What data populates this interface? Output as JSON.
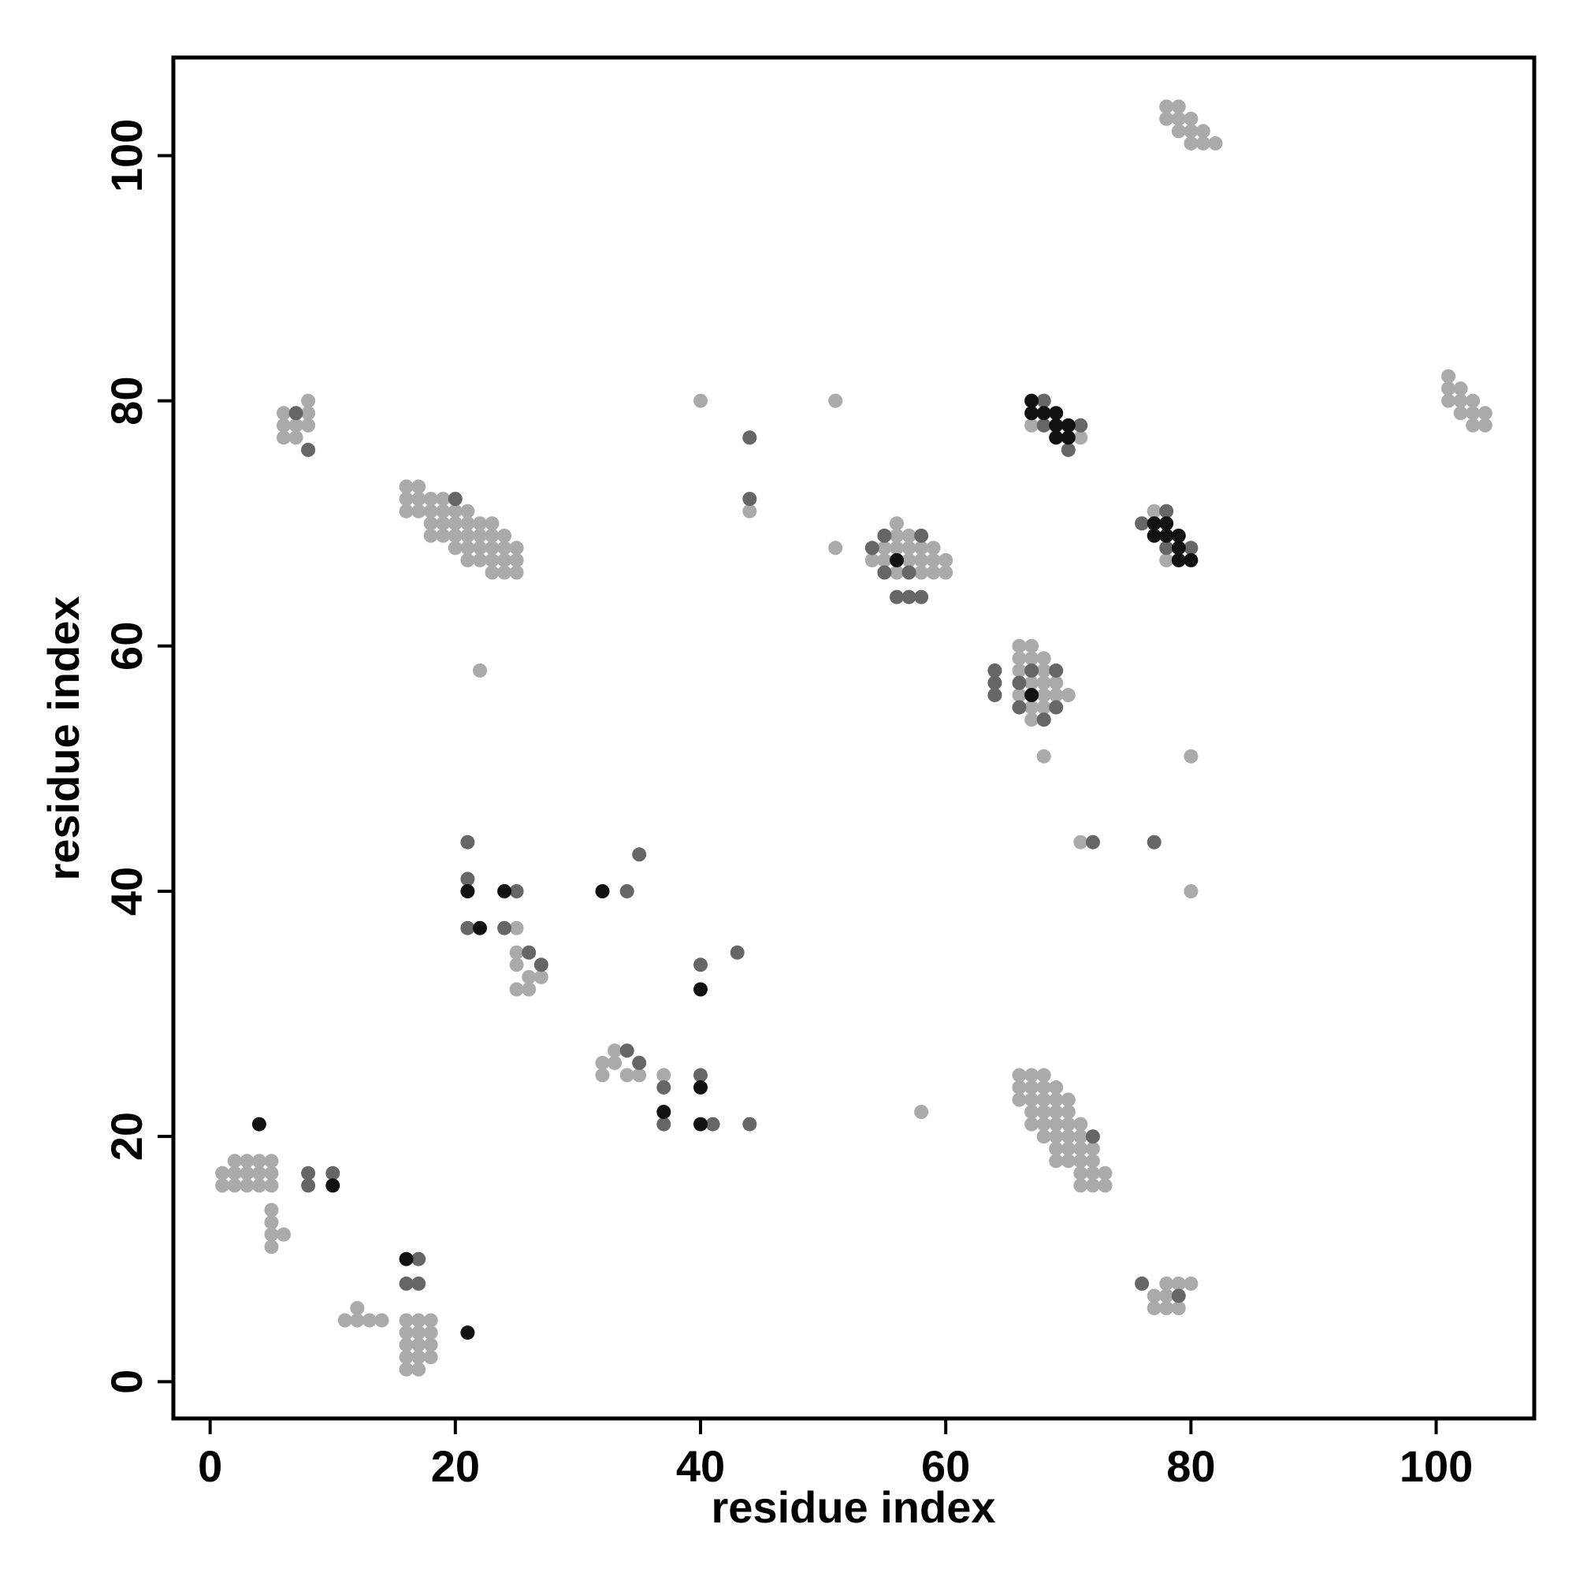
{
  "chart_data": {
    "type": "scatter",
    "title": "",
    "xlabel": "residue index",
    "ylabel": "residue index",
    "xlim": [
      -3,
      108
    ],
    "ylim": [
      -3,
      108
    ],
    "x_ticks": [
      0,
      20,
      40,
      60,
      80,
      100
    ],
    "y_ticks": [
      0,
      20,
      40,
      60,
      80,
      100
    ],
    "grid": false,
    "legend": "none",
    "colors": {
      "light": "#aaaaaa",
      "medium": "#666666",
      "dark": "#111111"
    },
    "series": [
      {
        "color_key": "light",
        "points": [
          [
            1,
            16
          ],
          [
            1,
            17
          ],
          [
            2,
            16
          ],
          [
            2,
            17
          ],
          [
            2,
            18
          ],
          [
            3,
            16
          ],
          [
            3,
            17
          ],
          [
            3,
            18
          ],
          [
            4,
            16
          ],
          [
            4,
            17
          ],
          [
            4,
            18
          ],
          [
            5,
            16
          ],
          [
            5,
            17
          ],
          [
            5,
            18
          ],
          [
            5,
            14
          ],
          [
            5,
            13
          ],
          [
            5,
            12
          ],
          [
            5,
            11
          ],
          [
            6,
            12
          ],
          [
            11,
            5
          ],
          [
            12,
            5
          ],
          [
            12,
            6
          ],
          [
            13,
            5
          ],
          [
            14,
            5
          ],
          [
            16,
            1
          ],
          [
            16,
            2
          ],
          [
            16,
            3
          ],
          [
            16,
            4
          ],
          [
            16,
            5
          ],
          [
            17,
            1
          ],
          [
            17,
            2
          ],
          [
            17,
            3
          ],
          [
            17,
            4
          ],
          [
            17,
            5
          ],
          [
            18,
            2
          ],
          [
            18,
            3
          ],
          [
            18,
            4
          ],
          [
            18,
            5
          ],
          [
            6,
            79
          ],
          [
            6,
            78
          ],
          [
            6,
            77
          ],
          [
            7,
            78
          ],
          [
            7,
            77
          ],
          [
            8,
            80
          ],
          [
            8,
            79
          ],
          [
            8,
            78
          ],
          [
            16,
            73
          ],
          [
            16,
            72
          ],
          [
            16,
            71
          ],
          [
            17,
            73
          ],
          [
            17,
            72
          ],
          [
            17,
            71
          ],
          [
            18,
            72
          ],
          [
            18,
            71
          ],
          [
            18,
            70
          ],
          [
            18,
            69
          ],
          [
            19,
            72
          ],
          [
            19,
            71
          ],
          [
            19,
            70
          ],
          [
            19,
            69
          ],
          [
            20,
            71
          ],
          [
            20,
            70
          ],
          [
            20,
            69
          ],
          [
            20,
            68
          ],
          [
            21,
            71
          ],
          [
            21,
            70
          ],
          [
            21,
            69
          ],
          [
            21,
            68
          ],
          [
            21,
            67
          ],
          [
            22,
            70
          ],
          [
            22,
            69
          ],
          [
            22,
            68
          ],
          [
            22,
            67
          ],
          [
            23,
            70
          ],
          [
            23,
            69
          ],
          [
            23,
            68
          ],
          [
            23,
            67
          ],
          [
            23,
            66
          ],
          [
            24,
            69
          ],
          [
            24,
            68
          ],
          [
            24,
            67
          ],
          [
            24,
            66
          ],
          [
            25,
            68
          ],
          [
            25,
            67
          ],
          [
            25,
            66
          ],
          [
            22,
            58
          ],
          [
            25,
            37
          ],
          [
            25,
            35
          ],
          [
            25,
            34
          ],
          [
            25,
            32
          ],
          [
            26,
            33
          ],
          [
            26,
            32
          ],
          [
            27,
            33
          ],
          [
            32,
            26
          ],
          [
            32,
            25
          ],
          [
            33,
            27
          ],
          [
            33,
            26
          ],
          [
            34,
            25
          ],
          [
            35,
            25
          ],
          [
            37,
            25
          ],
          [
            40,
            80
          ],
          [
            44,
            71
          ],
          [
            51,
            80
          ],
          [
            51,
            68
          ],
          [
            54,
            67
          ],
          [
            55,
            68
          ],
          [
            55,
            67
          ],
          [
            56,
            70
          ],
          [
            56,
            69
          ],
          [
            56,
            68
          ],
          [
            56,
            66
          ],
          [
            57,
            69
          ],
          [
            57,
            68
          ],
          [
            57,
            67
          ],
          [
            58,
            68
          ],
          [
            58,
            67
          ],
          [
            58,
            66
          ],
          [
            59,
            68
          ],
          [
            59,
            67
          ],
          [
            59,
            66
          ],
          [
            60,
            67
          ],
          [
            60,
            66
          ],
          [
            58,
            22
          ],
          [
            66,
            60
          ],
          [
            66,
            59
          ],
          [
            66,
            58
          ],
          [
            66,
            56
          ],
          [
            67,
            60
          ],
          [
            67,
            59
          ],
          [
            67,
            57
          ],
          [
            67,
            55
          ],
          [
            67,
            54
          ],
          [
            68,
            59
          ],
          [
            68,
            58
          ],
          [
            68,
            57
          ],
          [
            68,
            56
          ],
          [
            68,
            55
          ],
          [
            69,
            57
          ],
          [
            69,
            56
          ],
          [
            70,
            56
          ],
          [
            68,
            51
          ],
          [
            80,
            51
          ],
          [
            71,
            44
          ],
          [
            80,
            40
          ],
          [
            67,
            78
          ],
          [
            71,
            77
          ],
          [
            77,
            71
          ],
          [
            78,
            67
          ],
          [
            66,
            25
          ],
          [
            66,
            24
          ],
          [
            66,
            23
          ],
          [
            67,
            25
          ],
          [
            67,
            24
          ],
          [
            67,
            23
          ],
          [
            67,
            22
          ],
          [
            67,
            21
          ],
          [
            68,
            25
          ],
          [
            68,
            24
          ],
          [
            68,
            23
          ],
          [
            68,
            22
          ],
          [
            68,
            21
          ],
          [
            68,
            20
          ],
          [
            69,
            24
          ],
          [
            69,
            23
          ],
          [
            69,
            22
          ],
          [
            69,
            21
          ],
          [
            69,
            20
          ],
          [
            69,
            19
          ],
          [
            69,
            18
          ],
          [
            70,
            23
          ],
          [
            70,
            22
          ],
          [
            70,
            21
          ],
          [
            70,
            20
          ],
          [
            70,
            19
          ],
          [
            70,
            18
          ],
          [
            71,
            21
          ],
          [
            71,
            20
          ],
          [
            71,
            19
          ],
          [
            71,
            18
          ],
          [
            71,
            17
          ],
          [
            71,
            16
          ],
          [
            72,
            19
          ],
          [
            72,
            18
          ],
          [
            72,
            17
          ],
          [
            72,
            16
          ],
          [
            73,
            17
          ],
          [
            73,
            16
          ],
          [
            77,
            7
          ],
          [
            77,
            6
          ],
          [
            78,
            8
          ],
          [
            78,
            7
          ],
          [
            78,
            6
          ],
          [
            79,
            8
          ],
          [
            79,
            6
          ],
          [
            80,
            8
          ],
          [
            78,
            104
          ],
          [
            78,
            103
          ],
          [
            79,
            104
          ],
          [
            79,
            103
          ],
          [
            79,
            102
          ],
          [
            80,
            103
          ],
          [
            80,
            102
          ],
          [
            80,
            101
          ],
          [
            81,
            102
          ],
          [
            81,
            101
          ],
          [
            82,
            101
          ],
          [
            101,
            82
          ],
          [
            101,
            81
          ],
          [
            101,
            80
          ],
          [
            102,
            81
          ],
          [
            102,
            80
          ],
          [
            102,
            79
          ],
          [
            103,
            80
          ],
          [
            103,
            79
          ],
          [
            103,
            78
          ],
          [
            104,
            79
          ],
          [
            104,
            78
          ]
        ]
      },
      {
        "color_key": "medium",
        "points": [
          [
            8,
            17
          ],
          [
            8,
            16
          ],
          [
            10,
            17
          ],
          [
            16,
            8
          ],
          [
            17,
            10
          ],
          [
            17,
            8
          ],
          [
            7,
            79
          ],
          [
            8,
            76
          ],
          [
            20,
            72
          ],
          [
            21,
            44
          ],
          [
            21,
            41
          ],
          [
            21,
            37
          ],
          [
            24,
            37
          ],
          [
            25,
            40
          ],
          [
            26,
            35
          ],
          [
            27,
            34
          ],
          [
            34,
            40
          ],
          [
            35,
            43
          ],
          [
            34,
            27
          ],
          [
            35,
            26
          ],
          [
            37,
            24
          ],
          [
            37,
            21
          ],
          [
            40,
            34
          ],
          [
            40,
            25
          ],
          [
            41,
            21
          ],
          [
            43,
            35
          ],
          [
            44,
            21
          ],
          [
            44,
            77
          ],
          [
            44,
            72
          ],
          [
            54,
            68
          ],
          [
            55,
            69
          ],
          [
            55,
            66
          ],
          [
            57,
            66
          ],
          [
            57,
            64
          ],
          [
            58,
            69
          ],
          [
            58,
            64
          ],
          [
            56,
            64
          ],
          [
            64,
            58
          ],
          [
            64,
            57
          ],
          [
            64,
            56
          ],
          [
            66,
            57
          ],
          [
            66,
            55
          ],
          [
            67,
            58
          ],
          [
            67,
            56
          ],
          [
            68,
            54
          ],
          [
            69,
            58
          ],
          [
            69,
            55
          ],
          [
            68,
            80
          ],
          [
            68,
            78
          ],
          [
            70,
            76
          ],
          [
            71,
            78
          ],
          [
            72,
            44
          ],
          [
            77,
            44
          ],
          [
            72,
            20
          ],
          [
            76,
            70
          ],
          [
            78,
            71
          ],
          [
            78,
            68
          ],
          [
            80,
            68
          ],
          [
            76,
            8
          ],
          [
            79,
            7
          ]
        ]
      },
      {
        "color_key": "dark",
        "points": [
          [
            4,
            21
          ],
          [
            10,
            16
          ],
          [
            16,
            10
          ],
          [
            21,
            4
          ],
          [
            21,
            40
          ],
          [
            22,
            37
          ],
          [
            24,
            40
          ],
          [
            32,
            40
          ],
          [
            37,
            22
          ],
          [
            40,
            32
          ],
          [
            40,
            24
          ],
          [
            40,
            21
          ],
          [
            56,
            67
          ],
          [
            67,
            56
          ],
          [
            67,
            80
          ],
          [
            67,
            79
          ],
          [
            68,
            79
          ],
          [
            69,
            79
          ],
          [
            69,
            78
          ],
          [
            69,
            77
          ],
          [
            70,
            78
          ],
          [
            70,
            77
          ],
          [
            77,
            70
          ],
          [
            77,
            69
          ],
          [
            78,
            70
          ],
          [
            78,
            69
          ],
          [
            79,
            69
          ],
          [
            79,
            68
          ],
          [
            79,
            67
          ],
          [
            80,
            67
          ]
        ]
      }
    ]
  }
}
